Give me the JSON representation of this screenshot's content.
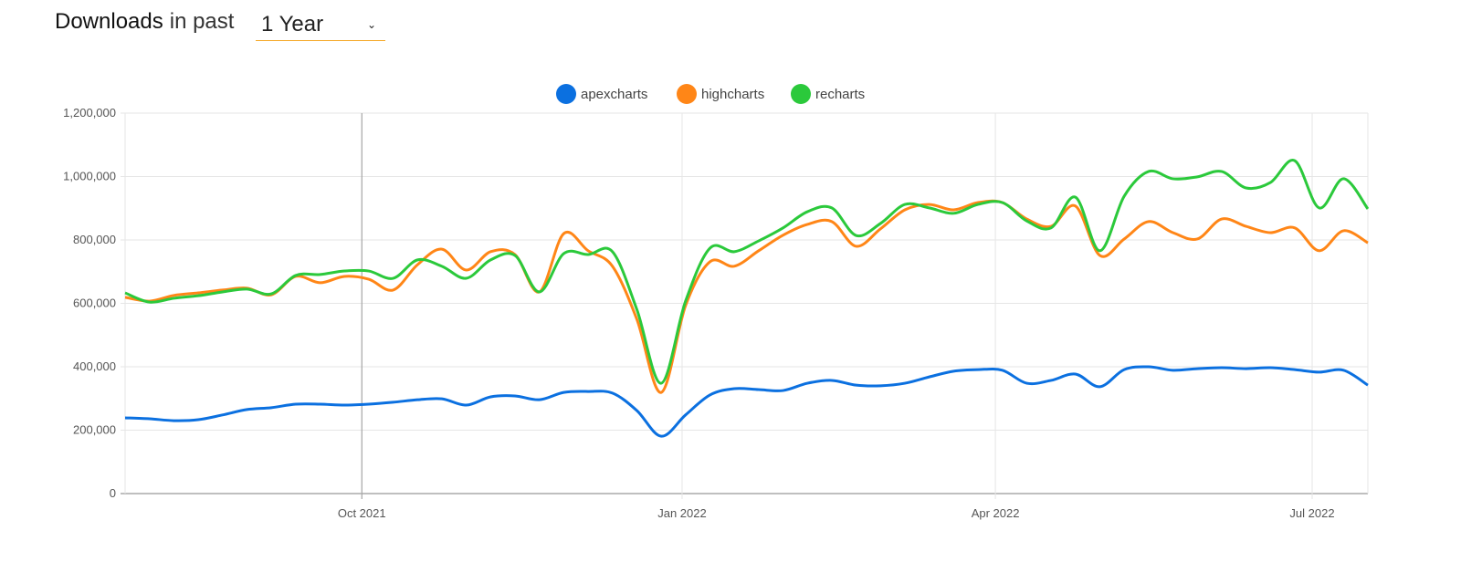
{
  "header": {
    "title_strong": "Downloads",
    "title_light": "in past",
    "period_selected": "1 Year",
    "dropdown_icon": "chevron-down-icon"
  },
  "chart_data": {
    "type": "line",
    "title": "",
    "xlabel": "",
    "ylabel": "",
    "ylim": [
      0,
      1200000
    ],
    "y_ticks": [
      "0",
      "200,000",
      "400,000",
      "600,000",
      "800,000",
      "1,000,000",
      "1,200,000"
    ],
    "y_tick_values": [
      0,
      200000,
      400000,
      600000,
      800000,
      1000000,
      1200000
    ],
    "x_ticks": [
      {
        "label": "Oct 2021",
        "date": "2021-10-01"
      },
      {
        "label": "Jan 2022",
        "date": "2022-01-01"
      },
      {
        "label": "Apr 2022",
        "date": "2022-04-01"
      },
      {
        "label": "Jul 2022",
        "date": "2022-07-01"
      }
    ],
    "xlim": [
      "2021-07-25",
      "2022-07-17"
    ],
    "crosshair_date": "2021-10-01",
    "grid": true,
    "legend_position": "top-center",
    "x": [
      "2021-07-25",
      "2021-08-01",
      "2021-08-08",
      "2021-08-15",
      "2021-08-22",
      "2021-08-29",
      "2021-09-05",
      "2021-09-12",
      "2021-09-19",
      "2021-09-26",
      "2021-10-03",
      "2021-10-10",
      "2021-10-17",
      "2021-10-24",
      "2021-10-31",
      "2021-11-07",
      "2021-11-14",
      "2021-11-21",
      "2021-11-28",
      "2021-12-05",
      "2021-12-12",
      "2021-12-19",
      "2021-12-26",
      "2022-01-02",
      "2022-01-09",
      "2022-01-16",
      "2022-01-23",
      "2022-01-30",
      "2022-02-06",
      "2022-02-13",
      "2022-02-20",
      "2022-02-27",
      "2022-03-06",
      "2022-03-13",
      "2022-03-20",
      "2022-03-27",
      "2022-04-03",
      "2022-04-10",
      "2022-04-17",
      "2022-04-24",
      "2022-05-01",
      "2022-05-08",
      "2022-05-15",
      "2022-05-22",
      "2022-05-29",
      "2022-06-05",
      "2022-06-12",
      "2022-06-19",
      "2022-06-26",
      "2022-07-03",
      "2022-07-10",
      "2022-07-17"
    ],
    "series": [
      {
        "name": "apexcharts",
        "color": "#0b70e0",
        "values": [
          239000,
          236000,
          230000,
          233000,
          248000,
          265000,
          271000,
          282000,
          282000,
          279000,
          282000,
          288000,
          296000,
          299000,
          279000,
          305000,
          308000,
          296000,
          319000,
          322000,
          317000,
          262000,
          181000,
          248000,
          311000,
          331000,
          328000,
          325000,
          348000,
          357000,
          342000,
          340000,
          348000,
          368000,
          386000,
          391000,
          389000,
          348000,
          357000,
          377000,
          337000,
          391000,
          400000,
          389000,
          394000,
          397000,
          394000,
          397000,
          391000,
          383000,
          389000,
          342000
        ]
      },
      {
        "name": "highcharts",
        "color": "#ff8617",
        "values": [
          619000,
          607000,
          625000,
          633000,
          642000,
          648000,
          627000,
          685000,
          665000,
          685000,
          676000,
          642000,
          722000,
          771000,
          705000,
          763000,
          754000,
          636000,
          820000,
          766000,
          717000,
          550000,
          319000,
          593000,
          731000,
          717000,
          766000,
          815000,
          849000,
          858000,
          780000,
          835000,
          895000,
          912000,
          895000,
          918000,
          918000,
          866000,
          843000,
          907000,
          751000,
          803000,
          858000,
          823000,
          803000,
          866000,
          843000,
          823000,
          838000,
          766000,
          829000,
          791000
        ]
      },
      {
        "name": "recharts",
        "color": "#2bc93b",
        "values": [
          633000,
          604000,
          616000,
          624000,
          636000,
          645000,
          630000,
          688000,
          691000,
          702000,
          702000,
          679000,
          737000,
          717000,
          679000,
          737000,
          751000,
          636000,
          757000,
          754000,
          763000,
          581000,
          348000,
          607000,
          774000,
          763000,
          797000,
          838000,
          889000,
          901000,
          814000,
          852000,
          912000,
          901000,
          884000,
          912000,
          918000,
          860000,
          838000,
          935000,
          766000,
          938000,
          1016000,
          993000,
          999000,
          1016000,
          964000,
          981000,
          1050000,
          901000,
          993000,
          898000
        ]
      }
    ]
  }
}
